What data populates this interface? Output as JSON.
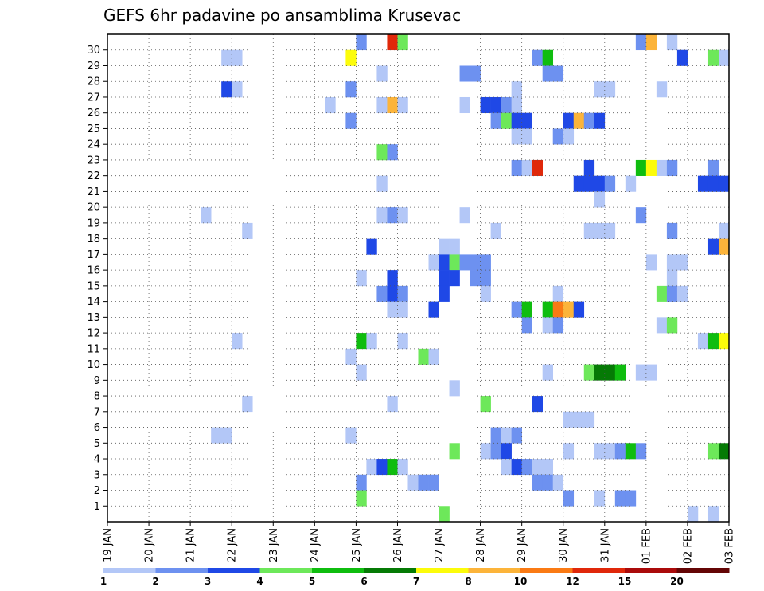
{
  "chart_data": {
    "type": "heatmap",
    "title": "GEFS 6hr padavine po ansamblima Krusevac",
    "xlabel": "",
    "ylabel": "",
    "x_ticks": [
      "19 JAN",
      "20 JAN",
      "21 JAN",
      "22 JAN",
      "23 JAN",
      "24 JAN",
      "25 JAN",
      "26 JAN",
      "27 JAN",
      "28 JAN",
      "29 JAN",
      "30 JAN",
      "31 JAN",
      "01 FEB",
      "02 FEB",
      "03 FEB"
    ],
    "y_ticks": [
      "1",
      "2",
      "3",
      "4",
      "5",
      "6",
      "7",
      "8",
      "9",
      "10",
      "11",
      "12",
      "13",
      "14",
      "15",
      "16",
      "17",
      "18",
      "19",
      "20",
      "21",
      "22",
      "23",
      "24",
      "25",
      "26",
      "27",
      "28",
      "29",
      "30"
    ],
    "steps": 60,
    "grid": true,
    "color_bins": [
      {
        "color": "#b3c7f7",
        "label": "1"
      },
      {
        "color": "#6d91f0",
        "label": "2"
      },
      {
        "color": "#1f48e6",
        "label": "3"
      },
      {
        "color": "#6de85a",
        "label": "4"
      },
      {
        "color": "#0fbd0f",
        "label": "5"
      },
      {
        "color": "#057a05",
        "label": "6"
      },
      {
        "color": "#fcfc0a",
        "label": "7"
      },
      {
        "color": "#fcb43a",
        "label": "8"
      },
      {
        "color": "#fa7a14",
        "label": "10"
      },
      {
        "color": "#e0280a",
        "label": "12"
      },
      {
        "color": "#aa0a0a",
        "label": "15"
      },
      {
        "color": "#640505",
        "label": "20"
      }
    ],
    "cells": [
      [
        24,
        30,
        1
      ],
      [
        27,
        30,
        9
      ],
      [
        28,
        30,
        3
      ],
      [
        51,
        30,
        1
      ],
      [
        52,
        30,
        7
      ],
      [
        54,
        30,
        0
      ],
      [
        11,
        29,
        0
      ],
      [
        12,
        29,
        0
      ],
      [
        23,
        29,
        6
      ],
      [
        41,
        29,
        1
      ],
      [
        42,
        29,
        4
      ],
      [
        55,
        29,
        2
      ],
      [
        58,
        29,
        3
      ],
      [
        59,
        29,
        0
      ],
      [
        26,
        28,
        0
      ],
      [
        34,
        28,
        1
      ],
      [
        35,
        28,
        1
      ],
      [
        42,
        28,
        1
      ],
      [
        43,
        28,
        1
      ],
      [
        11,
        27,
        2
      ],
      [
        12,
        27,
        0
      ],
      [
        23,
        27,
        1
      ],
      [
        39,
        27,
        0
      ],
      [
        47,
        27,
        0
      ],
      [
        48,
        27,
        0
      ],
      [
        53,
        27,
        0
      ],
      [
        21,
        26,
        0
      ],
      [
        26,
        26,
        0
      ],
      [
        27,
        26,
        7
      ],
      [
        28,
        26,
        0
      ],
      [
        34,
        26,
        0
      ],
      [
        36,
        26,
        2
      ],
      [
        37,
        26,
        2
      ],
      [
        38,
        26,
        1
      ],
      [
        39,
        26,
        0
      ],
      [
        23,
        25,
        1
      ],
      [
        37,
        25,
        1
      ],
      [
        38,
        25,
        3
      ],
      [
        39,
        25,
        2
      ],
      [
        40,
        25,
        2
      ],
      [
        44,
        25,
        2
      ],
      [
        45,
        25,
        7
      ],
      [
        46,
        25,
        1
      ],
      [
        47,
        25,
        2
      ],
      [
        39,
        24,
        0
      ],
      [
        40,
        24,
        0
      ],
      [
        43,
        24,
        1
      ],
      [
        44,
        24,
        0
      ],
      [
        26,
        23,
        3
      ],
      [
        27,
        23,
        1
      ],
      [
        39,
        22,
        1
      ],
      [
        40,
        22,
        0
      ],
      [
        41,
        22,
        9
      ],
      [
        46,
        22,
        2
      ],
      [
        51,
        22,
        4
      ],
      [
        52,
        22,
        6
      ],
      [
        53,
        22,
        0
      ],
      [
        54,
        22,
        1
      ],
      [
        58,
        22,
        1
      ],
      [
        26,
        21,
        0
      ],
      [
        45,
        21,
        2
      ],
      [
        46,
        21,
        2
      ],
      [
        47,
        21,
        2
      ],
      [
        48,
        21,
        1
      ],
      [
        50,
        21,
        0
      ],
      [
        57,
        21,
        2
      ],
      [
        58,
        21,
        2
      ],
      [
        59,
        21,
        2
      ],
      [
        47,
        20,
        0
      ],
      [
        9,
        19,
        0
      ],
      [
        26,
        19,
        0
      ],
      [
        27,
        19,
        1
      ],
      [
        28,
        19,
        0
      ],
      [
        34,
        19,
        0
      ],
      [
        51,
        19,
        1
      ],
      [
        13,
        18,
        0
      ],
      [
        37,
        18,
        0
      ],
      [
        46,
        18,
        0
      ],
      [
        47,
        18,
        0
      ],
      [
        48,
        18,
        0
      ],
      [
        54,
        18,
        1
      ],
      [
        59,
        18,
        0
      ],
      [
        25,
        17,
        2
      ],
      [
        32,
        17,
        0
      ],
      [
        33,
        17,
        0
      ],
      [
        58,
        17,
        2
      ],
      [
        59,
        17,
        7
      ],
      [
        31,
        16,
        0
      ],
      [
        32,
        16,
        2
      ],
      [
        33,
        16,
        3
      ],
      [
        34,
        16,
        1
      ],
      [
        35,
        16,
        1
      ],
      [
        36,
        16,
        1
      ],
      [
        52,
        16,
        0
      ],
      [
        54,
        16,
        0
      ],
      [
        55,
        16,
        0
      ],
      [
        24,
        15,
        0
      ],
      [
        27,
        15,
        2
      ],
      [
        32,
        15,
        2
      ],
      [
        33,
        15,
        2
      ],
      [
        35,
        15,
        1
      ],
      [
        36,
        15,
        1
      ],
      [
        54,
        15,
        0
      ],
      [
        26,
        14,
        1
      ],
      [
        27,
        14,
        2
      ],
      [
        28,
        14,
        1
      ],
      [
        32,
        14,
        2
      ],
      [
        36,
        14,
        0
      ],
      [
        43,
        14,
        0
      ],
      [
        53,
        14,
        3
      ],
      [
        54,
        14,
        1
      ],
      [
        55,
        14,
        0
      ],
      [
        27,
        13,
        0
      ],
      [
        28,
        13,
        0
      ],
      [
        31,
        13,
        2
      ],
      [
        39,
        13,
        1
      ],
      [
        40,
        13,
        4
      ],
      [
        42,
        13,
        4
      ],
      [
        43,
        13,
        8
      ],
      [
        44,
        13,
        7
      ],
      [
        45,
        13,
        2
      ],
      [
        40,
        12,
        1
      ],
      [
        42,
        12,
        0
      ],
      [
        43,
        12,
        1
      ],
      [
        53,
        12,
        0
      ],
      [
        54,
        12,
        3
      ],
      [
        12,
        11,
        0
      ],
      [
        24,
        11,
        4
      ],
      [
        25,
        11,
        0
      ],
      [
        28,
        11,
        0
      ],
      [
        57,
        11,
        0
      ],
      [
        58,
        11,
        4
      ],
      [
        59,
        11,
        6
      ],
      [
        23,
        10,
        0
      ],
      [
        30,
        10,
        3
      ],
      [
        31,
        10,
        0
      ],
      [
        24,
        9,
        0
      ],
      [
        42,
        9,
        0
      ],
      [
        46,
        9,
        3
      ],
      [
        47,
        9,
        5
      ],
      [
        48,
        9,
        5
      ],
      [
        49,
        9,
        4
      ],
      [
        51,
        9,
        0
      ],
      [
        52,
        9,
        0
      ],
      [
        33,
        8,
        0
      ],
      [
        13,
        7,
        0
      ],
      [
        27,
        7,
        0
      ],
      [
        36,
        7,
        3
      ],
      [
        41,
        7,
        2
      ],
      [
        44,
        6,
        0
      ],
      [
        45,
        6,
        0
      ],
      [
        46,
        6,
        0
      ],
      [
        10,
        5,
        0
      ],
      [
        11,
        5,
        0
      ],
      [
        23,
        5,
        0
      ],
      [
        37,
        5,
        1
      ],
      [
        38,
        5,
        0
      ],
      [
        39,
        5,
        1
      ],
      [
        33,
        4,
        3
      ],
      [
        36,
        4,
        0
      ],
      [
        37,
        4,
        1
      ],
      [
        38,
        4,
        2
      ],
      [
        44,
        4,
        0
      ],
      [
        47,
        4,
        0
      ],
      [
        48,
        4,
        0
      ],
      [
        49,
        4,
        1
      ],
      [
        50,
        4,
        4
      ],
      [
        51,
        4,
        1
      ],
      [
        58,
        4,
        3
      ],
      [
        59,
        4,
        5
      ],
      [
        25,
        3,
        0
      ],
      [
        26,
        3,
        2
      ],
      [
        27,
        3,
        4
      ],
      [
        28,
        3,
        0
      ],
      [
        38,
        3,
        0
      ],
      [
        39,
        3,
        2
      ],
      [
        40,
        3,
        1
      ],
      [
        41,
        3,
        0
      ],
      [
        42,
        3,
        0
      ],
      [
        24,
        2,
        1
      ],
      [
        29,
        2,
        0
      ],
      [
        30,
        2,
        1
      ],
      [
        31,
        2,
        1
      ],
      [
        41,
        2,
        1
      ],
      [
        42,
        2,
        1
      ],
      [
        43,
        2,
        0
      ],
      [
        24,
        1,
        3
      ],
      [
        44,
        1,
        1
      ],
      [
        47,
        1,
        0
      ],
      [
        49,
        1,
        1
      ],
      [
        50,
        1,
        1
      ],
      [
        32,
        0,
        3
      ],
      [
        56,
        0,
        0
      ],
      [
        58,
        0,
        0
      ]
    ]
  }
}
